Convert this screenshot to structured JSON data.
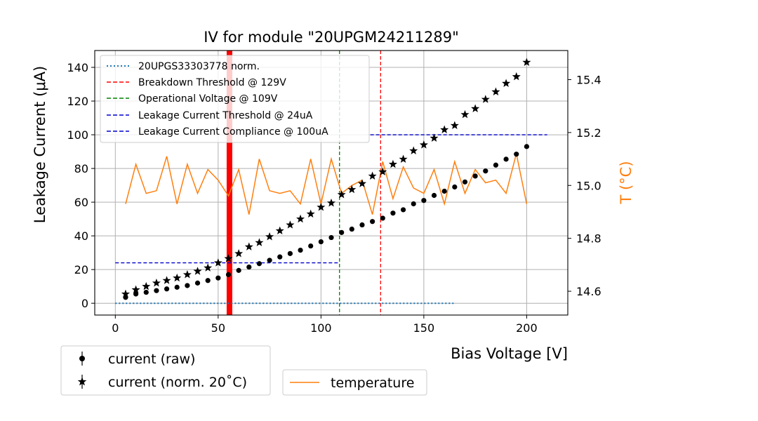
{
  "chart_data": {
    "type": "scatter",
    "title": "IV for module \"20UPGM24211289\"",
    "xlabel": "Bias Voltage [V]",
    "ylabel": "Leakage Current (μA)",
    "y2label": "T (°C)",
    "xlim": [
      -10,
      220
    ],
    "ylim": [
      -7,
      150
    ],
    "y2lim": [
      14.51,
      15.51
    ],
    "xticks": [
      0,
      50,
      100,
      150,
      200
    ],
    "yticks": [
      0,
      20,
      40,
      60,
      80,
      100,
      120,
      140
    ],
    "y2ticks": [
      14.6,
      14.8,
      15.0,
      15.2,
      15.4
    ],
    "y2ticklabels": [
      "14.6",
      "14.8",
      "15.0",
      "15.2",
      "15.4"
    ],
    "grid": true,
    "legend_inner": [
      {
        "label": "20UPGS33303778 norm.",
        "color": "#1f77b4",
        "style": "dotted"
      },
      {
        "label": "Breakdown Threshold @ 129V",
        "color": "#ff0000",
        "style": "dashed"
      },
      {
        "label": "Operational Voltage @ 109V",
        "color": "#008000",
        "style": "dashed"
      },
      {
        "label": "Leakage Current Threshold @ 24uA",
        "color": "#0000cd",
        "style": "dashed"
      },
      {
        "label": "Leakage Current Compliance @ 100uA",
        "color": "#0000cd",
        "style": "dashed"
      }
    ],
    "legend_current": [
      {
        "label": "current (raw)",
        "marker": "circle"
      },
      {
        "label": "current (norm. 20˚C)",
        "marker": "star"
      }
    ],
    "legend_temperature": [
      {
        "label": "temperature",
        "color": "#ff7f0e"
      }
    ],
    "reference_curve": {
      "name": "20UPGS33303778 norm.",
      "x": [
        0,
        165
      ],
      "y": [
        0,
        0
      ]
    },
    "thresholds": {
      "breakdown_v": 129,
      "operational_v": 109,
      "leakage_threshold_ua": 24,
      "leakage_threshold_x": [
        0,
        109
      ],
      "compliance_ua": 100,
      "compliance_x": [
        124,
        210
      ],
      "red_band_v": 55.5
    },
    "series": [
      {
        "name": "current (raw)",
        "marker": "circle",
        "x": [
          5,
          10,
          15,
          20,
          25,
          30,
          35,
          40,
          45,
          50,
          55,
          60,
          65,
          70,
          75,
          80,
          85,
          90,
          95,
          100,
          105,
          110,
          115,
          120,
          125,
          130,
          135,
          140,
          145,
          150,
          155,
          160,
          165,
          170,
          175,
          180,
          185,
          190,
          195,
          200
        ],
        "values": [
          3.5,
          5.5,
          6.5,
          7.5,
          8.5,
          9.5,
          10.5,
          12,
          13.5,
          15,
          17,
          19.5,
          21.5,
          23.5,
          25.5,
          27.5,
          29.5,
          31.5,
          34,
          36.5,
          39,
          42,
          44,
          46.5,
          48.5,
          50.5,
          53.5,
          55.5,
          59,
          61,
          64,
          66.5,
          69,
          72,
          75.5,
          78.5,
          82,
          85.5,
          88.5,
          93
        ]
      },
      {
        "name": "current (norm. 20˚C)",
        "marker": "star",
        "x": [
          5,
          10,
          15,
          20,
          25,
          30,
          35,
          40,
          45,
          50,
          55,
          60,
          65,
          70,
          75,
          80,
          85,
          90,
          95,
          100,
          105,
          110,
          115,
          120,
          125,
          130,
          135,
          140,
          145,
          150,
          155,
          160,
          165,
          170,
          175,
          180,
          185,
          190,
          195,
          200
        ],
        "values": [
          5.5,
          8,
          10,
          12,
          13.5,
          15,
          17,
          19,
          21,
          24,
          26.5,
          29.5,
          33.5,
          36,
          39.5,
          43,
          46.5,
          50,
          53,
          57,
          59.5,
          64.5,
          67.5,
          71,
          75.5,
          78,
          82.5,
          85.5,
          90.5,
          94,
          98,
          103,
          105.5,
          112,
          115.5,
          121,
          125.5,
          130.5,
          134.5,
          143
        ]
      },
      {
        "name": "temperature",
        "axis": "right",
        "x": [
          5,
          10,
          15,
          20,
          25,
          30,
          35,
          40,
          45,
          50,
          55,
          60,
          65,
          70,
          75,
          80,
          85,
          90,
          95,
          100,
          105,
          110,
          115,
          120,
          125,
          130,
          135,
          140,
          145,
          150,
          155,
          160,
          165,
          170,
          175,
          180,
          185,
          190,
          195,
          200
        ],
        "values": [
          14.93,
          15.08,
          14.97,
          14.98,
          15.11,
          14.93,
          15.08,
          14.97,
          15.06,
          15.02,
          14.96,
          15.06,
          14.89,
          15.1,
          14.98,
          14.97,
          14.98,
          14.93,
          15.1,
          14.93,
          15.1,
          14.97,
          15.0,
          15.02,
          14.89,
          15.09,
          14.95,
          15.07,
          14.99,
          14.97,
          15.06,
          14.93,
          15.09,
          14.97,
          15.06,
          15.01,
          15.02,
          14.97,
          15.12,
          14.93
        ]
      }
    ]
  }
}
